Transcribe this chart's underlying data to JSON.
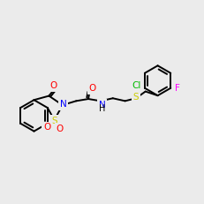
{
  "background_color": "#ebebeb",
  "bond_color": "#000000",
  "lw": 1.4,
  "atom_colors": {
    "N": "#0000ff",
    "O": "#ff0000",
    "S_heterocycle": "#cccc00",
    "S_thioether": "#cccc00",
    "Cl": "#00bb00",
    "F": "#ff00ff",
    "H": "#000000"
  },
  "font_size": 7.5
}
